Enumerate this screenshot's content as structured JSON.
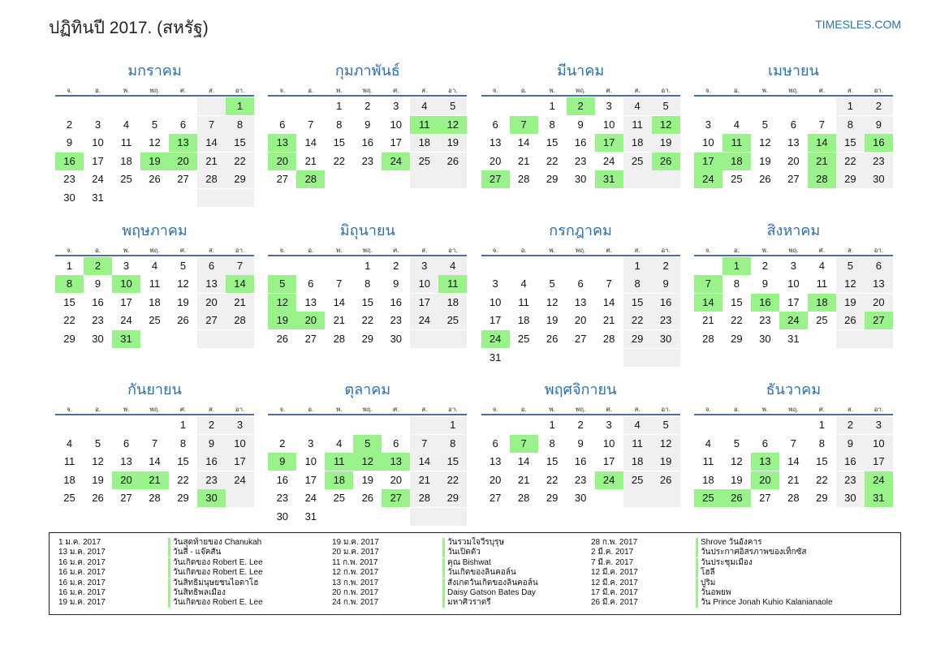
{
  "header": {
    "title": "ปฏิทินปี 2017. (สหรัฐ)",
    "site": "TIMESLES.COM"
  },
  "weekdays": [
    "จ.",
    "อ.",
    "พ.",
    "พฤ.",
    "ศ.",
    "ส.",
    "อา."
  ],
  "months": [
    {
      "name": "มกราคม",
      "weeks": [
        [
          null,
          null,
          null,
          null,
          null,
          null,
          1
        ],
        [
          2,
          3,
          4,
          5,
          6,
          7,
          8
        ],
        [
          9,
          10,
          11,
          12,
          13,
          14,
          15
        ],
        [
          16,
          17,
          18,
          19,
          20,
          21,
          22
        ],
        [
          23,
          24,
          25,
          26,
          27,
          28,
          29
        ],
        [
          30,
          31
        ]
      ],
      "highlight": [
        1,
        13,
        16,
        19,
        20
      ]
    },
    {
      "name": "กุมภาพันธ์",
      "weeks": [
        [
          null,
          null,
          1,
          2,
          3,
          4,
          5
        ],
        [
          6,
          7,
          8,
          9,
          10,
          11,
          12
        ],
        [
          13,
          14,
          15,
          16,
          17,
          18,
          19
        ],
        [
          20,
          21,
          22,
          23,
          24,
          25,
          26
        ],
        [
          27,
          28
        ]
      ],
      "highlight": [
        11,
        12,
        13,
        20,
        24,
        28
      ]
    },
    {
      "name": "มีนาคม",
      "weeks": [
        [
          null,
          null,
          1,
          2,
          3,
          4,
          5
        ],
        [
          6,
          7,
          8,
          9,
          10,
          11,
          12
        ],
        [
          13,
          14,
          15,
          16,
          17,
          18,
          19
        ],
        [
          20,
          21,
          22,
          23,
          24,
          25,
          26
        ],
        [
          27,
          28,
          29,
          30,
          31
        ]
      ],
      "highlight": [
        2,
        7,
        12,
        17,
        26,
        27,
        31
      ]
    },
    {
      "name": "เมษายน",
      "weeks": [
        [
          null,
          null,
          null,
          null,
          null,
          1,
          2
        ],
        [
          3,
          4,
          5,
          6,
          7,
          8,
          9
        ],
        [
          10,
          11,
          12,
          13,
          14,
          15,
          16
        ],
        [
          17,
          18,
          19,
          20,
          21,
          22,
          23
        ],
        [
          24,
          25,
          26,
          27,
          28,
          29,
          30
        ]
      ],
      "highlight": [
        11,
        14,
        16,
        17,
        18,
        21,
        24,
        28
      ]
    },
    {
      "name": "พฤษภาคม",
      "weeks": [
        [
          1,
          2,
          3,
          4,
          5,
          6,
          7
        ],
        [
          8,
          9,
          10,
          11,
          12,
          13,
          14
        ],
        [
          15,
          16,
          17,
          18,
          19,
          20,
          21
        ],
        [
          22,
          23,
          24,
          25,
          26,
          27,
          28
        ],
        [
          29,
          30,
          31
        ]
      ],
      "highlight": [
        2,
        8,
        10,
        14,
        31
      ]
    },
    {
      "name": "มิถุนายน",
      "weeks": [
        [
          null,
          null,
          null,
          1,
          2,
          3,
          4
        ],
        [
          5,
          6,
          7,
          8,
          9,
          10,
          11
        ],
        [
          12,
          13,
          14,
          15,
          16,
          17,
          18
        ],
        [
          19,
          20,
          21,
          22,
          23,
          24,
          25
        ],
        [
          26,
          27,
          28,
          29,
          30
        ]
      ],
      "highlight": [
        5,
        11,
        12,
        19,
        20
      ]
    },
    {
      "name": "กรกฎาคม",
      "weeks": [
        [
          null,
          null,
          null,
          null,
          null,
          1,
          2
        ],
        [
          3,
          4,
          5,
          6,
          7,
          8,
          9
        ],
        [
          10,
          11,
          12,
          13,
          14,
          15,
          16
        ],
        [
          17,
          18,
          19,
          20,
          21,
          22,
          23
        ],
        [
          24,
          25,
          26,
          27,
          28,
          29,
          30
        ],
        [
          31
        ]
      ],
      "highlight": [
        24
      ]
    },
    {
      "name": "สิงหาคม",
      "weeks": [
        [
          null,
          1,
          2,
          3,
          4,
          5,
          6
        ],
        [
          7,
          8,
          9,
          10,
          11,
          12,
          13
        ],
        [
          14,
          15,
          16,
          17,
          18,
          19,
          20
        ],
        [
          21,
          22,
          23,
          24,
          25,
          26,
          27
        ],
        [
          28,
          29,
          30,
          31
        ]
      ],
      "highlight": [
        1,
        7,
        14,
        16,
        18,
        24,
        27
      ]
    },
    {
      "name": "กันยายน",
      "weeks": [
        [
          null,
          null,
          null,
          null,
          1,
          2,
          3
        ],
        [
          4,
          5,
          6,
          7,
          8,
          9,
          10
        ],
        [
          11,
          12,
          13,
          14,
          15,
          16,
          17
        ],
        [
          18,
          19,
          20,
          21,
          22,
          23,
          24
        ],
        [
          25,
          26,
          27,
          28,
          29,
          30
        ]
      ],
      "highlight": [
        20,
        21,
        30
      ]
    },
    {
      "name": "ตุลาคม",
      "weeks": [
        [
          null,
          null,
          null,
          null,
          null,
          null,
          1
        ],
        [
          2,
          3,
          4,
          5,
          6,
          7,
          8
        ],
        [
          9,
          10,
          11,
          12,
          13,
          14,
          15
        ],
        [
          16,
          17,
          18,
          19,
          20,
          21,
          22
        ],
        [
          23,
          24,
          25,
          26,
          27,
          28,
          29
        ],
        [
          30,
          31
        ]
      ],
      "highlight": [
        5,
        9,
        11,
        12,
        13,
        18,
        27
      ]
    },
    {
      "name": "พฤศจิกายน",
      "weeks": [
        [
          null,
          null,
          1,
          2,
          3,
          4,
          5
        ],
        [
          6,
          7,
          8,
          9,
          10,
          11,
          12
        ],
        [
          13,
          14,
          15,
          16,
          17,
          18,
          19
        ],
        [
          20,
          21,
          22,
          23,
          24,
          25,
          26
        ],
        [
          27,
          28,
          29,
          30
        ]
      ],
      "highlight": [
        7,
        24
      ]
    },
    {
      "name": "ธันวาคม",
      "weeks": [
        [
          null,
          null,
          null,
          null,
          1,
          2,
          3
        ],
        [
          4,
          5,
          6,
          7,
          8,
          9,
          10
        ],
        [
          11,
          12,
          13,
          14,
          15,
          16,
          17
        ],
        [
          18,
          19,
          20,
          21,
          22,
          23,
          24
        ],
        [
          25,
          26,
          27,
          28,
          29,
          30,
          31
        ]
      ],
      "highlight": [
        13,
        20,
        24,
        25,
        26,
        31
      ]
    }
  ],
  "holidays": [
    [
      [
        "1 ม.ค. 2017",
        "วันสุดท้ายของ Chanukah"
      ],
      [
        "13 ม.ค. 2017",
        "วันสี่ - แจ๊คสัน"
      ],
      [
        "16 ม.ค. 2017",
        "วันเกิดของ Robert E. Lee"
      ],
      [
        "16 ม.ค. 2017",
        "วันเกิดของ Robert E. Lee"
      ],
      [
        "16 ม.ค. 2017",
        "วันสิทธิมนุษยชนไอดาโฮ"
      ],
      [
        "16 ม.ค. 2017",
        "วันสิทธิพลเมือง"
      ],
      [
        "19 ม.ค. 2017",
        "วันเกิดของ Robert E. Lee"
      ]
    ],
    [
      [
        "19 ม.ค. 2017",
        "วันรวมใจวีรบุรุษ"
      ],
      [
        "20 ม.ค. 2017",
        "วันเปิดตัว"
      ],
      [
        "11 ก.พ. 2017",
        "คุณ Bishwat"
      ],
      [
        "12 ก.พ. 2017",
        "วันเกิดของลินคอล์น"
      ],
      [
        "13 ก.พ. 2017",
        "สังเกตวันเกิดของลินคอล์น"
      ],
      [
        "20 ก.พ. 2017",
        "Daisy Gatson Bates Day"
      ],
      [
        "24 ก.พ. 2017",
        "มหาศิวราตรี"
      ]
    ],
    [
      [
        "28 ก.พ. 2017",
        "Shrove วันอังคาร"
      ],
      [
        "2 มี.ค. 2017",
        "วันประกาศอิสรภาพของเท็กซัส"
      ],
      [
        "7 มี.ค. 2017",
        "วันประชุมเมือง"
      ],
      [
        "12 มี.ค. 2017",
        "โฮลี"
      ],
      [
        "12 มี.ค. 2017",
        "ปูริม"
      ],
      [
        "17 มี.ค. 2017",
        "วันอพยพ"
      ],
      [
        "26 มี.ค. 2017",
        "วัน Prince Jonah Kuhio Kalanianaole"
      ]
    ]
  ]
}
